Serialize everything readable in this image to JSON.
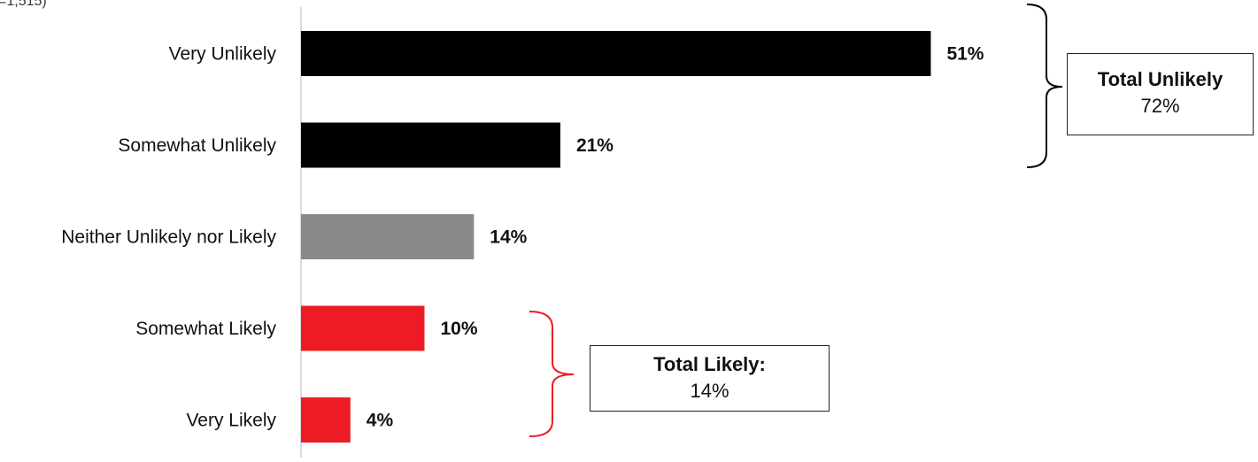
{
  "chart_data": {
    "type": "bar",
    "orientation": "horizontal",
    "note": "=1,515)",
    "categories": [
      "Very Unlikely",
      "Somewhat Unlikely",
      "Neither Unlikely nor Likely",
      "Somewhat Likely",
      "Very Likely"
    ],
    "values": [
      51,
      21,
      14,
      10,
      4
    ],
    "value_labels": [
      "51%",
      "21%",
      "14%",
      "10%",
      "4%"
    ],
    "bar_colors": [
      "#000000",
      "#000000",
      "#898989",
      "#ed1c24",
      "#ed1c24"
    ],
    "xlim": [
      0,
      100
    ],
    "grid": false,
    "legend": "none",
    "annotations": [
      {
        "title": "Total Unlikely",
        "value": "72%",
        "brace_color": "#000000",
        "groups": [
          "Very Unlikely",
          "Somewhat Unlikely"
        ]
      },
      {
        "title": "Total Likely:",
        "value": "14%",
        "brace_color": "#ed1c24",
        "groups": [
          "Somewhat Likely",
          "Very Likely"
        ]
      }
    ]
  }
}
